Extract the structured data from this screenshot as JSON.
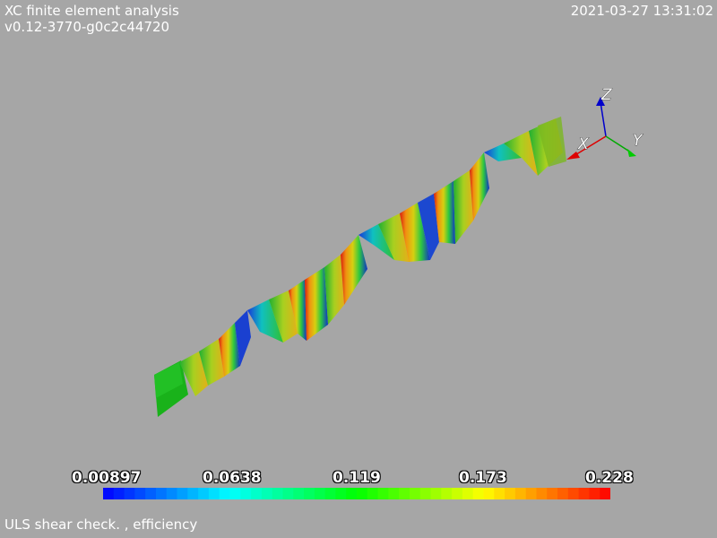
{
  "header": {
    "title": "XC finite element analysis",
    "version": "v0.12-3770-g0c2c44720",
    "timestamp": "2021-03-27 13:31:02"
  },
  "caption": "ULS shear check. , efficiency",
  "colorbar": {
    "min": 0.00897,
    "max": 0.228,
    "tick_labels": [
      "0.00897",
      "0.0638",
      "0.119",
      "0.173",
      "0.228"
    ],
    "colors": [
      "#0000ff",
      "#00ffff",
      "#00ff00",
      "#ffff00",
      "#ff0000"
    ]
  },
  "axes_triad": {
    "x_label": "X",
    "y_label": "Y",
    "z_label": "Z",
    "x_color": "#ff0000",
    "y_color": "#00cc00",
    "z_color": "#0000cc"
  },
  "background_color": "#a6a6a6"
}
